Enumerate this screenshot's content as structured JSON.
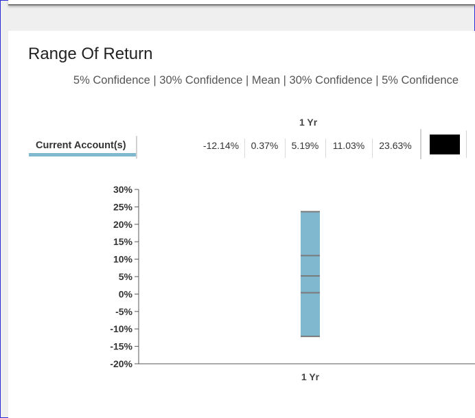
{
  "title": "Range Of Return",
  "legend_text": "5% Confidence | 30% Confidence | Mean | 30% Confidence | 5% Confidence",
  "period_header": "1 Yr",
  "account_label": "Current Account(s)",
  "value_labels": [
    "-12.14%",
    "0.37%",
    "5.19%",
    "11.03%",
    "23.63%"
  ],
  "colors": {
    "bar": "#7fb8cf",
    "swatch": "#000000",
    "marker": "#7a7a7a"
  },
  "chart_data": {
    "type": "bar",
    "categories": [
      "1 Yr"
    ],
    "series": [
      {
        "name": "Current Account(s)",
        "low_5": -12.14,
        "low_30": 0.37,
        "mean": 5.19,
        "high_30": 11.03,
        "high_5": 23.63
      }
    ],
    "ylim": [
      -20,
      30
    ],
    "yticks": [
      30,
      25,
      20,
      15,
      10,
      5,
      0,
      -5,
      -10,
      -15,
      -20
    ],
    "ytick_labels": [
      "30%",
      "25%",
      "20%",
      "15%",
      "10%",
      "5%",
      "0%",
      "-5%",
      "-10%",
      "-15%",
      "-20%"
    ],
    "grid": false
  }
}
